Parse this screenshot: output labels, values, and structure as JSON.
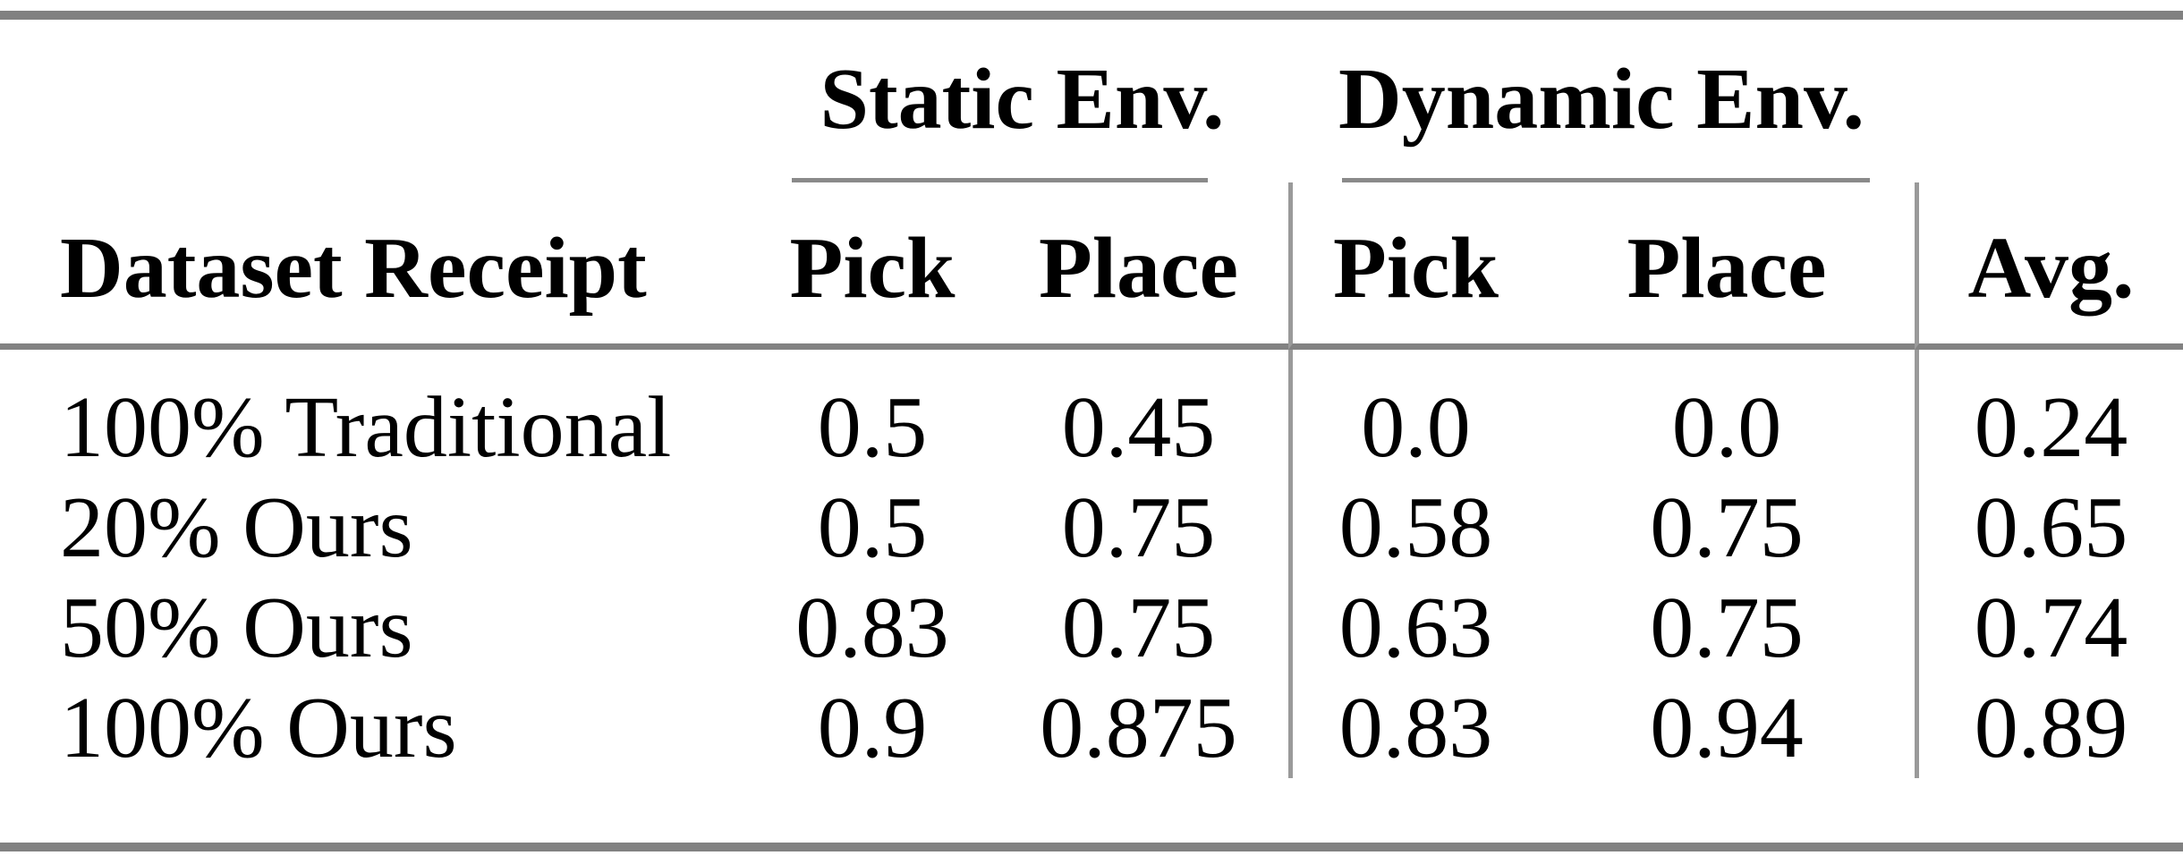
{
  "table": {
    "span_headers": {
      "static": "Static Env.",
      "dynamic": "Dynamic Env."
    },
    "headers": {
      "dataset": "Dataset Receipt",
      "static_pick": "Pick",
      "static_place": "Place",
      "dynamic_pick": "Pick",
      "dynamic_place": "Place",
      "avg": "Avg."
    },
    "rows": [
      {
        "label": "100% Traditional",
        "static_pick": "0.5",
        "static_place": "0.45",
        "dynamic_pick": "0.0",
        "dynamic_place": "0.0",
        "avg": "0.24"
      },
      {
        "label": "20% Ours",
        "static_pick": "0.5",
        "static_place": "0.75",
        "dynamic_pick": "0.58",
        "dynamic_place": "0.75",
        "avg": "0.65"
      },
      {
        "label": "50% Ours",
        "static_pick": "0.83",
        "static_place": "0.75",
        "dynamic_pick": "0.63",
        "dynamic_place": "0.75",
        "avg": "0.74"
      },
      {
        "label": "100% Ours",
        "static_pick": "0.9",
        "static_place": "0.875",
        "dynamic_pick": "0.83",
        "dynamic_place": "0.94",
        "avg": "0.89"
      }
    ],
    "colors": {
      "thick_rule": "#818181",
      "cmidrule": "#8a8a8a",
      "vertical_rule": "#9a9a9a",
      "text": "#000000",
      "background": "#ffffff"
    }
  },
  "chart_data": {
    "type": "table",
    "title": "",
    "column_groups": [
      {
        "label": "Static Env.",
        "columns": [
          "Pick",
          "Place"
        ]
      },
      {
        "label": "Dynamic Env.",
        "columns": [
          "Pick",
          "Place"
        ]
      }
    ],
    "columns": [
      "Dataset Receipt",
      "Static Env. Pick",
      "Static Env. Place",
      "Dynamic Env. Pick",
      "Dynamic Env. Place",
      "Avg."
    ],
    "rows": [
      [
        "100% Traditional",
        0.5,
        0.45,
        0.0,
        0.0,
        0.24
      ],
      [
        "20% Ours",
        0.5,
        0.75,
        0.58,
        0.75,
        0.65
      ],
      [
        "50% Ours",
        0.83,
        0.75,
        0.63,
        0.75,
        0.74
      ],
      [
        "100% Ours",
        0.9,
        0.875,
        0.83,
        0.94,
        0.89
      ]
    ]
  }
}
